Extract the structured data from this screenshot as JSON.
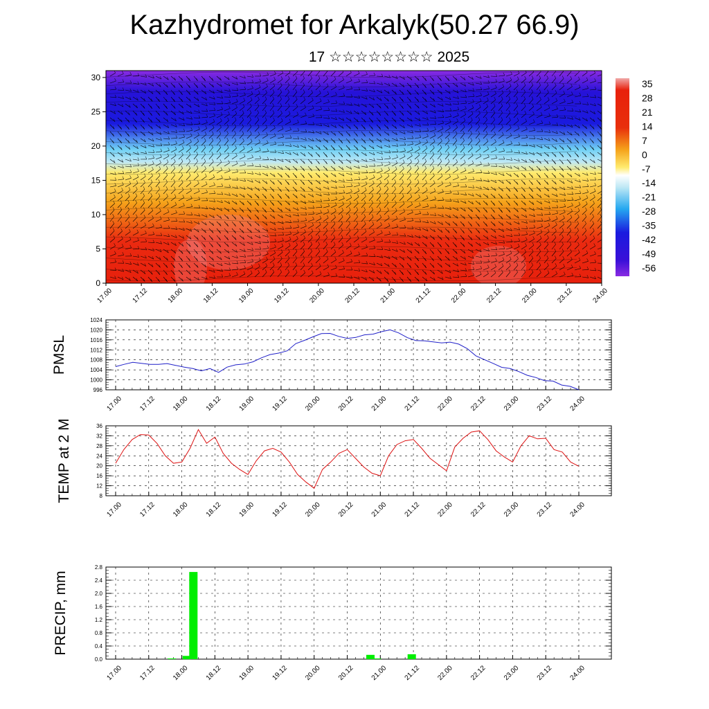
{
  "header": {
    "title": "Kazhydromet for Arkalyk(50.27 66.9)",
    "subtitle": "17 ☆☆☆☆☆☆☆☆ 2025"
  },
  "chart_data": [
    {
      "type": "heatmap",
      "ylim": [
        0,
        31
      ],
      "y_ticks": [
        "0",
        "5",
        "10",
        "15",
        "20",
        "25",
        "30"
      ],
      "x_ticks": [
        "17.00",
        "17.12",
        "18.00",
        "18.12",
        "19.00",
        "19.12",
        "20.00",
        "20.12",
        "21.00",
        "21.12",
        "22.00",
        "22.12",
        "23.00",
        "23.12",
        "24.00"
      ],
      "colorbar_labels": [
        "35",
        "28",
        "21",
        "14",
        "7",
        "0",
        "-7",
        "-14",
        "-21",
        "-28",
        "-35",
        "-42",
        "-49",
        "-56"
      ],
      "colorbar_range": [
        -60,
        38
      ],
      "colors": {
        "purple": "#8a2be2",
        "blue": "#1a1adf",
        "lightblue": "#6fd0f5",
        "yellow": "#ffeb6e",
        "orange": "#f5a21a",
        "red": "#e8200c",
        "pink": "#f0a8a8"
      }
    },
    {
      "type": "line",
      "ylabel": "PMSL",
      "ylim": [
        996,
        1024
      ],
      "y_ticks": [
        "996",
        "1000",
        "1004",
        "1008",
        "1012",
        "1016",
        "1020",
        "1024"
      ],
      "x_ticks": [
        "17.00",
        "17.12",
        "18.00",
        "18.12",
        "19.00",
        "19.12",
        "20.00",
        "20.12",
        "21.00",
        "21.12",
        "22.00",
        "22.12",
        "23.00",
        "23.12",
        "24.00"
      ],
      "color": "#1f1fc8",
      "values": [
        1005.3,
        1006.2,
        1007.0,
        1006.6,
        1006.2,
        1006.2,
        1006.5,
        1005.8,
        1005.1,
        1004.5,
        1003.6,
        1004.5,
        1003.0,
        1005.1,
        1006.0,
        1006.3,
        1007.2,
        1008.8,
        1010.1,
        1010.7,
        1011.6,
        1014.5,
        1015.8,
        1017.2,
        1018.5,
        1018.6,
        1017.4,
        1016.6,
        1017.0,
        1018.0,
        1018.3,
        1019.3,
        1020.0,
        1018.8,
        1016.9,
        1015.7,
        1015.6,
        1015.2,
        1014.8,
        1015.1,
        1014.3,
        1012.5,
        1009.6,
        1008.1,
        1006.6,
        1005.0,
        1004.5,
        1003.3,
        1001.8,
        1000.9,
        999.7,
        999.5,
        997.9,
        997.4,
        996.0
      ]
    },
    {
      "type": "line",
      "ylabel": "TEMP at 2 M",
      "ylim": [
        8,
        36
      ],
      "y_ticks": [
        "8",
        "12",
        "16",
        "20",
        "24",
        "28",
        "32",
        "36"
      ],
      "x_ticks": [
        "17.00",
        "17.12",
        "18.00",
        "18.12",
        "19.00",
        "19.12",
        "20.00",
        "20.12",
        "21.00",
        "21.12",
        "22.00",
        "22.12",
        "23.00",
        "23.12",
        "24.00"
      ],
      "color": "#dd1111",
      "values": [
        21.0,
        26.5,
        30.5,
        32.5,
        32.3,
        29.0,
        24.0,
        21.0,
        21.5,
        27.0,
        34.5,
        29.0,
        31.5,
        25.0,
        21.0,
        18.5,
        16.5,
        22.0,
        26.0,
        27.0,
        25.5,
        21.5,
        16.5,
        13.5,
        11.0,
        18.5,
        21.5,
        25.0,
        26.5,
        23.0,
        19.5,
        17.0,
        16.0,
        24.0,
        28.5,
        30.0,
        30.5,
        27.0,
        23.0,
        20.5,
        18.0,
        27.5,
        31.0,
        33.5,
        34.0,
        30.5,
        26.0,
        23.5,
        21.5,
        28.0,
        32.0,
        30.8,
        31.0,
        26.5,
        25.5,
        21.5,
        19.8
      ]
    },
    {
      "type": "bar",
      "ylabel": "PRECIP, mm",
      "ylim": [
        0,
        2.8
      ],
      "y_ticks": [
        "0.0",
        "0.4",
        "0.8",
        "1.2",
        "1.6",
        "2.0",
        "2.4",
        "2.8"
      ],
      "x_ticks": [
        "17.00",
        "17.12",
        "18.00",
        "18.12",
        "19.00",
        "19.12",
        "20.00",
        "20.12",
        "21.00",
        "21.12",
        "22.00",
        "22.12",
        "23.00",
        "23.12",
        "24.00"
      ],
      "color": "#00ee00",
      "bars": [
        {
          "x": 1.7,
          "value": 0.02
        },
        {
          "x": 2.15,
          "value": 0.1
        },
        {
          "x": 2.35,
          "value": 2.65
        },
        {
          "x": 7.7,
          "value": 0.13
        },
        {
          "x": 7.9,
          "value": 0.02
        },
        {
          "x": 8.95,
          "value": 0.15
        }
      ]
    }
  ]
}
